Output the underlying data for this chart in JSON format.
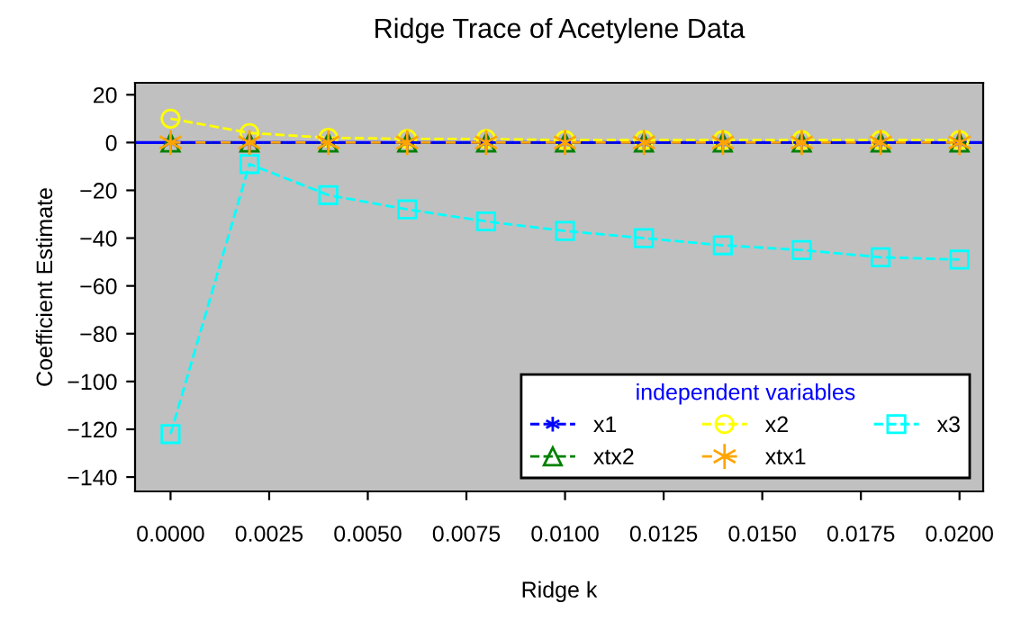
{
  "chart_data": {
    "type": "line",
    "title": "Ridge Trace of Acetylene Data",
    "xlabel": "Ridge k",
    "ylabel": "Coefficient Estimate",
    "legend_title": "independent variables",
    "legend": "bottom right",
    "x": [
      0,
      0.002,
      0.004,
      0.006,
      0.008,
      0.01,
      0.012,
      0.014,
      0.016,
      0.018,
      0.02
    ],
    "series": [
      {
        "name": "x1",
        "color": "#0000ff",
        "marker": "cross",
        "values": [
          0,
          0,
          0,
          0,
          0,
          0,
          0,
          0,
          0,
          0,
          0
        ]
      },
      {
        "name": "xtx2",
        "color": "#008000",
        "marker": "triangle",
        "values": [
          0,
          0,
          0,
          0,
          0,
          0,
          0,
          0,
          0,
          0,
          0
        ]
      },
      {
        "name": "x2",
        "color": "#ffff00",
        "marker": "circle",
        "values": [
          10,
          4,
          2,
          1.5,
          1.5,
          1,
          1,
          1,
          1,
          1,
          1
        ]
      },
      {
        "name": "xtx1",
        "color": "#ffa500",
        "marker": "cross",
        "values": [
          0,
          0,
          0,
          0,
          0,
          0,
          0,
          0,
          0,
          0,
          0
        ]
      },
      {
        "name": "x3",
        "color": "#00ffff",
        "marker": "square",
        "values": [
          -122,
          -9,
          -22,
          -28,
          -33,
          -37,
          -40,
          -43,
          -45,
          -48,
          -49
        ]
      }
    ],
    "line_style": "dashed",
    "ref_lines": [
      {
        "axis": "y",
        "value": 0,
        "color": "#0000ff",
        "line_style": "solid"
      }
    ],
    "xlim": [
      -0.0009,
      0.0206
    ],
    "ylim": [
      -146,
      25
    ],
    "xticks": [
      {
        "value": 0,
        "label": "0.0000"
      },
      {
        "value": 0.0025,
        "label": "0.0025"
      },
      {
        "value": 0.005,
        "label": "0.0050"
      },
      {
        "value": 0.0075,
        "label": "0.0075"
      },
      {
        "value": 0.01,
        "label": "0.0100"
      },
      {
        "value": 0.0125,
        "label": "0.0125"
      },
      {
        "value": 0.015,
        "label": "0.0150"
      },
      {
        "value": 0.0175,
        "label": "0.0175"
      },
      {
        "value": 0.02,
        "label": "0.0200"
      }
    ],
    "yticks": [
      20,
      0,
      {
        "value": -20,
        "label": "−20"
      },
      {
        "value": -40,
        "label": "−40"
      },
      {
        "value": -60,
        "label": "−60"
      },
      {
        "value": -80,
        "label": "−80"
      },
      {
        "value": -100,
        "label": "−100"
      },
      {
        "value": -120,
        "label": "−120"
      },
      {
        "value": -140,
        "label": "−140"
      }
    ],
    "grid": false
  }
}
